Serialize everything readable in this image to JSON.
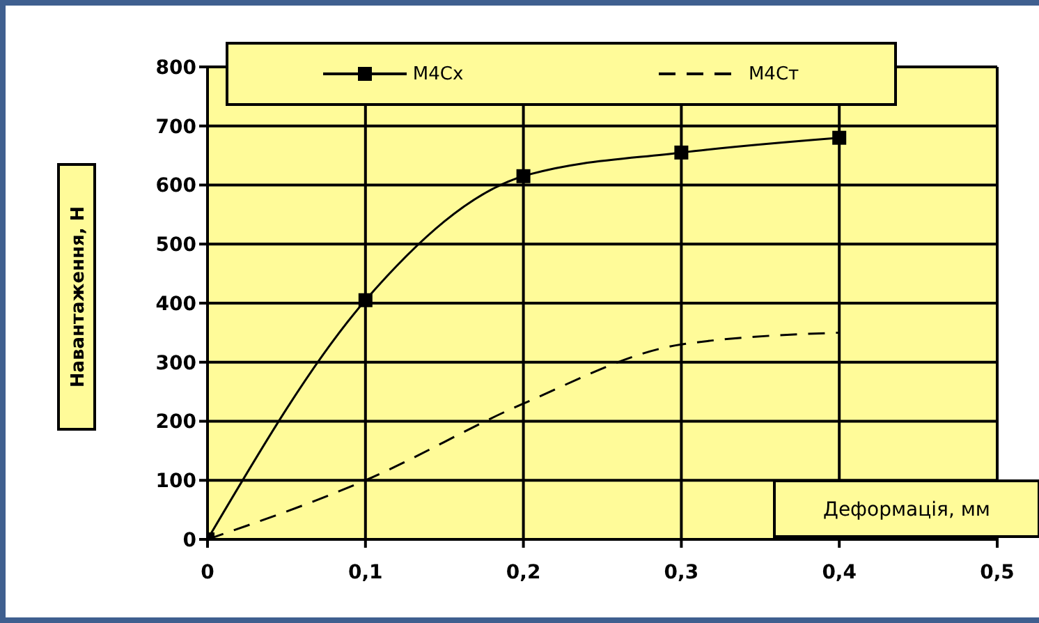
{
  "chart_data": {
    "type": "line",
    "xlabel": "Деформація, мм",
    "ylabel": "Навантаження, Н",
    "x": [
      0,
      0.1,
      0.2,
      0.3,
      0.4
    ],
    "series": [
      {
        "name": "М4Сх",
        "color": "#000000",
        "values": [
          0,
          405,
          615,
          655,
          680
        ],
        "marker": "square",
        "line_style": "solid"
      },
      {
        "name": "М4Ст",
        "color": "#000000",
        "values": [
          0,
          100,
          230,
          330,
          350
        ],
        "marker": "none",
        "line_style": "dashed"
      }
    ],
    "xlim": [
      0,
      0.5
    ],
    "xticks": [
      0,
      {
        "value": 0.1,
        "label": "0,1"
      },
      {
        "value": 0.2,
        "label": "0,2"
      },
      {
        "value": 0.3,
        "label": "0,3"
      },
      {
        "value": 0.4,
        "label": "0,4"
      },
      {
        "value": 0.5,
        "label": "0,5"
      }
    ],
    "ylim": [
      0,
      800
    ],
    "yticks": [
      0,
      100,
      200,
      300,
      400,
      500,
      600,
      700,
      800
    ],
    "grid": true,
    "legend": "top"
  }
}
